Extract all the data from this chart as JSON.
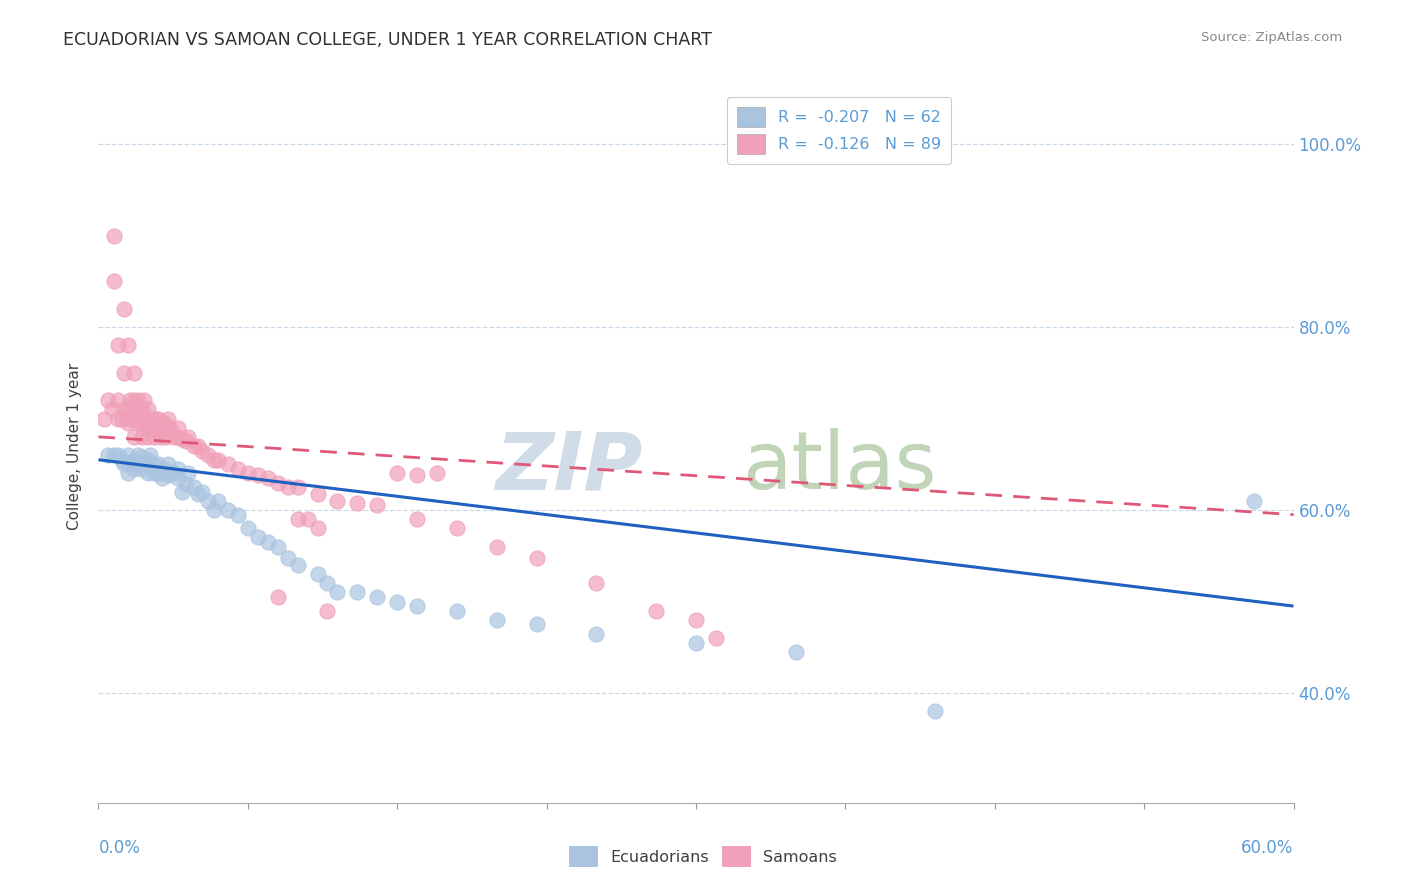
{
  "title": "ECUADORIAN VS SAMOAN COLLEGE, UNDER 1 YEAR CORRELATION CHART",
  "source": "Source: ZipAtlas.com",
  "ylabel": "College, Under 1 year",
  "xmin": 0.0,
  "xmax": 0.6,
  "ymin": 0.28,
  "ymax": 1.06,
  "r_ecuadorian": -0.207,
  "n_ecuadorian": 62,
  "r_samoan": -0.126,
  "n_samoan": 89,
  "color_ecuadorian": "#aac4e0",
  "color_samoan": "#f0a0b8",
  "line_color_ecuadorian": "#2060c0",
  "line_color_samoan": "#e05878",
  "watermark_zip_color": "#d0dce8",
  "watermark_atlas_color": "#c0d4b8",
  "grid_color": "#c8d8e8",
  "right_tick_color": "#5b9bd5",
  "bottom_tick_color": "#5b9bd5",
  "ecuadorian_x": [
    0.005,
    0.008,
    0.01,
    0.012,
    0.013,
    0.015,
    0.015,
    0.017,
    0.018,
    0.018,
    0.02,
    0.02,
    0.022,
    0.022,
    0.024,
    0.025,
    0.025,
    0.026,
    0.028,
    0.028,
    0.03,
    0.03,
    0.032,
    0.033,
    0.035,
    0.035,
    0.036,
    0.038,
    0.04,
    0.04,
    0.042,
    0.044,
    0.045,
    0.048,
    0.05,
    0.052,
    0.055,
    0.058,
    0.06,
    0.065,
    0.07,
    0.075,
    0.08,
    0.085,
    0.09,
    0.095,
    0.1,
    0.11,
    0.115,
    0.12,
    0.13,
    0.14,
    0.15,
    0.16,
    0.18,
    0.2,
    0.22,
    0.25,
    0.3,
    0.35,
    0.42,
    0.58
  ],
  "ecuadorian_y": [
    0.66,
    0.66,
    0.66,
    0.655,
    0.65,
    0.66,
    0.64,
    0.65,
    0.645,
    0.655,
    0.65,
    0.66,
    0.658,
    0.645,
    0.65,
    0.64,
    0.655,
    0.66,
    0.64,
    0.65,
    0.64,
    0.65,
    0.635,
    0.645,
    0.638,
    0.65,
    0.64,
    0.64,
    0.635,
    0.645,
    0.62,
    0.628,
    0.64,
    0.625,
    0.618,
    0.62,
    0.61,
    0.6,
    0.61,
    0.6,
    0.595,
    0.58,
    0.57,
    0.565,
    0.56,
    0.548,
    0.54,
    0.53,
    0.52,
    0.51,
    0.51,
    0.505,
    0.5,
    0.495,
    0.49,
    0.48,
    0.475,
    0.465,
    0.455,
    0.445,
    0.38,
    0.61
  ],
  "samoan_x": [
    0.003,
    0.005,
    0.007,
    0.008,
    0.008,
    0.01,
    0.01,
    0.01,
    0.012,
    0.013,
    0.013,
    0.013,
    0.015,
    0.015,
    0.015,
    0.016,
    0.016,
    0.017,
    0.018,
    0.018,
    0.018,
    0.018,
    0.02,
    0.02,
    0.02,
    0.021,
    0.022,
    0.022,
    0.022,
    0.023,
    0.023,
    0.024,
    0.025,
    0.025,
    0.025,
    0.026,
    0.027,
    0.028,
    0.028,
    0.029,
    0.03,
    0.03,
    0.031,
    0.032,
    0.033,
    0.034,
    0.035,
    0.035,
    0.036,
    0.038,
    0.04,
    0.04,
    0.042,
    0.044,
    0.045,
    0.048,
    0.05,
    0.052,
    0.055,
    0.058,
    0.06,
    0.065,
    0.07,
    0.075,
    0.08,
    0.085,
    0.09,
    0.095,
    0.1,
    0.11,
    0.12,
    0.13,
    0.14,
    0.16,
    0.18,
    0.2,
    0.22,
    0.25,
    0.28,
    0.3,
    0.31,
    0.15,
    0.16,
    0.17,
    0.09,
    0.1,
    0.105,
    0.11,
    0.115
  ],
  "samoan_y": [
    0.7,
    0.72,
    0.71,
    0.85,
    0.9,
    0.72,
    0.7,
    0.78,
    0.7,
    0.71,
    0.75,
    0.82,
    0.695,
    0.71,
    0.78,
    0.7,
    0.72,
    0.71,
    0.7,
    0.72,
    0.68,
    0.75,
    0.695,
    0.71,
    0.72,
    0.7,
    0.695,
    0.71,
    0.68,
    0.7,
    0.72,
    0.695,
    0.69,
    0.71,
    0.68,
    0.695,
    0.7,
    0.69,
    0.68,
    0.7,
    0.69,
    0.7,
    0.68,
    0.69,
    0.695,
    0.68,
    0.685,
    0.7,
    0.69,
    0.68,
    0.68,
    0.69,
    0.678,
    0.675,
    0.68,
    0.67,
    0.67,
    0.665,
    0.66,
    0.655,
    0.655,
    0.65,
    0.645,
    0.64,
    0.638,
    0.635,
    0.63,
    0.625,
    0.625,
    0.618,
    0.61,
    0.608,
    0.605,
    0.59,
    0.58,
    0.56,
    0.548,
    0.52,
    0.49,
    0.48,
    0.46,
    0.64,
    0.638,
    0.64,
    0.505,
    0.59,
    0.59,
    0.58,
    0.49
  ]
}
